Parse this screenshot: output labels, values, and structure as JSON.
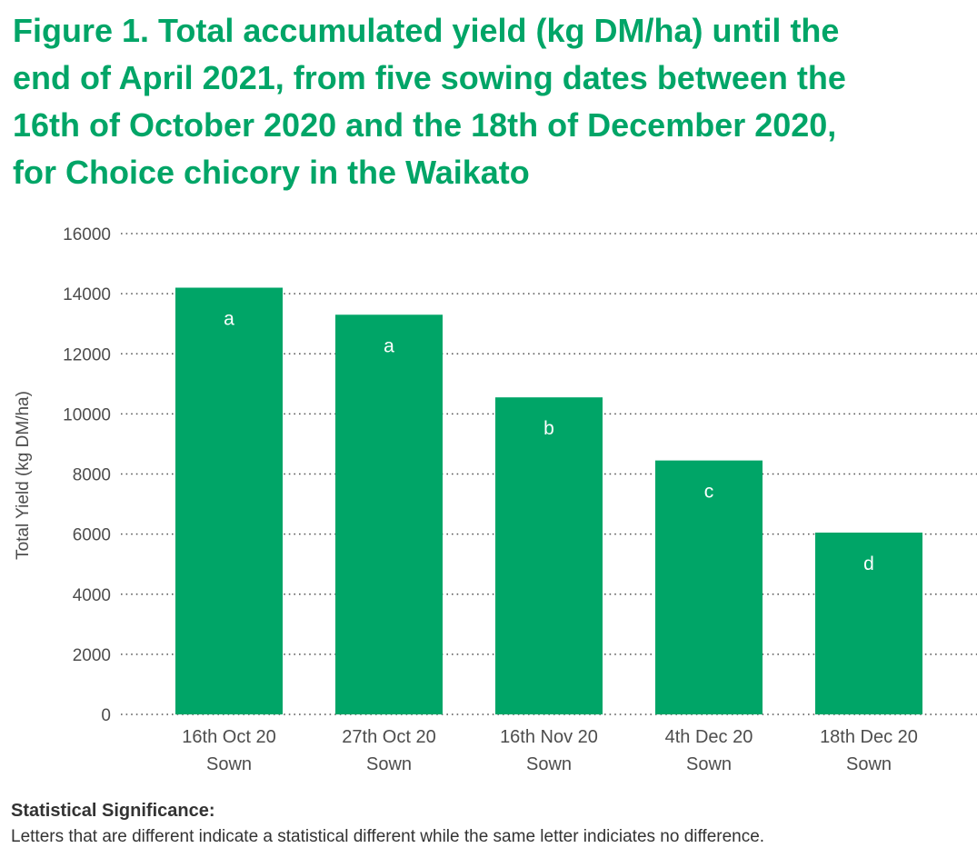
{
  "title_lines": [
    "Figure 1. Total accumulated yield (kg DM/ha) until the",
    "end of April 2021, from five sowing dates between the",
    "16th of October 2020 and the 18th of December 2020,",
    "for Choice chicory in the Waikato"
  ],
  "chart_data": {
    "type": "bar",
    "categories": [
      [
        "16th Oct 20",
        "Sown"
      ],
      [
        "27th Oct 20",
        "Sown"
      ],
      [
        "16th Nov 20",
        "Sown"
      ],
      [
        "4th Dec 20",
        "Sown"
      ],
      [
        "18th Dec 20",
        "Sown"
      ]
    ],
    "values": [
      14200,
      13300,
      10550,
      8450,
      6050
    ],
    "significance_letters": [
      "a",
      "a",
      "b",
      "c",
      "d"
    ],
    "ylabel": "Total Yield (kg DM/ha)",
    "xlabel": "",
    "ylim": [
      0,
      16000
    ],
    "yticks": [
      0,
      2000,
      4000,
      6000,
      8000,
      10000,
      12000,
      14000,
      16000
    ],
    "grid": true,
    "grid_style": "dotted",
    "legend": "none",
    "bar_color": "#00a567",
    "label_color": "#ffffff"
  },
  "footnote": {
    "heading": "Statistical Significance:",
    "body": "Letters that are different indicate a statistical different while the same letter indiciates no difference."
  }
}
